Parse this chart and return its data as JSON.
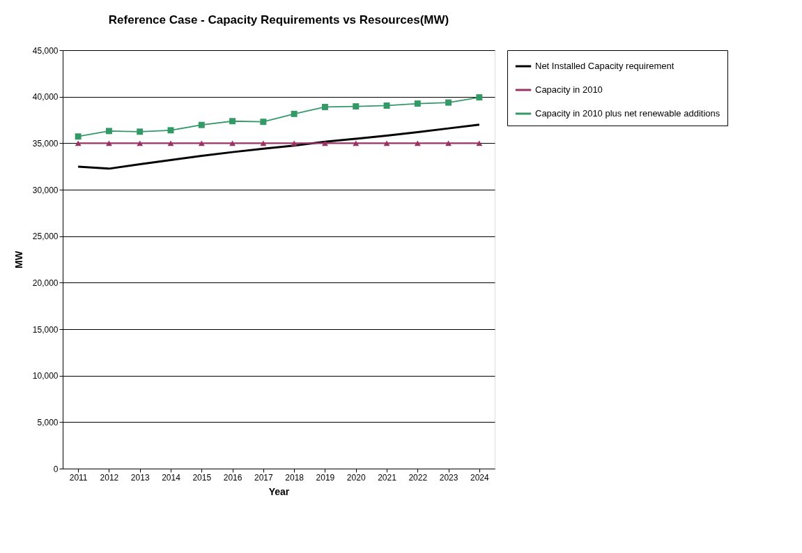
{
  "chart_data": {
    "type": "line",
    "title": "Reference Case - Capacity Requirements vs Resources(MW)",
    "xlabel": "Year",
    "ylabel": "MW",
    "categories": [
      "2011",
      "2012",
      "2013",
      "2014",
      "2015",
      "2016",
      "2017",
      "2018",
      "2019",
      "2020",
      "2021",
      "2022",
      "2023",
      "2024"
    ],
    "series": [
      {
        "name": "Net Installed Capacity requirement",
        "color": "#000000",
        "marker": "none",
        "values": [
          32480,
          32260,
          32740,
          33190,
          33630,
          34040,
          34410,
          34740,
          35150,
          35480,
          35810,
          36180,
          36590,
          37000
        ]
      },
      {
        "name": "Capacity in 2010",
        "color": "#993366",
        "marker": "triangle",
        "values": [
          35000,
          35000,
          35000,
          35000,
          35000,
          35000,
          35000,
          35000,
          35000,
          35000,
          35000,
          35000,
          35000,
          35000
        ]
      },
      {
        "name": "Capacity in 2010 plus net renewable additions",
        "color": "#339966",
        "marker": "square",
        "values": [
          35720,
          36310,
          36240,
          36390,
          36960,
          37370,
          37300,
          38150,
          38890,
          38960,
          39040,
          39260,
          39370,
          39930
        ]
      }
    ],
    "ylim": [
      0,
      45000
    ],
    "yticks": [
      0,
      {
        "value": 5000,
        "label": "5,000"
      },
      {
        "value": 10000,
        "label": "10,000"
      },
      {
        "value": 15000,
        "label": "15,000"
      },
      {
        "value": 20000,
        "label": "20,000"
      },
      {
        "value": 25000,
        "label": "25,000"
      },
      {
        "value": 30000,
        "label": "30,000"
      },
      {
        "value": 35000,
        "label": "35,000"
      },
      {
        "value": 40000,
        "label": "40,000"
      },
      {
        "value": 45000,
        "label": "45,000"
      }
    ],
    "grid": "y",
    "legend": "right",
    "line_style": "solid"
  }
}
